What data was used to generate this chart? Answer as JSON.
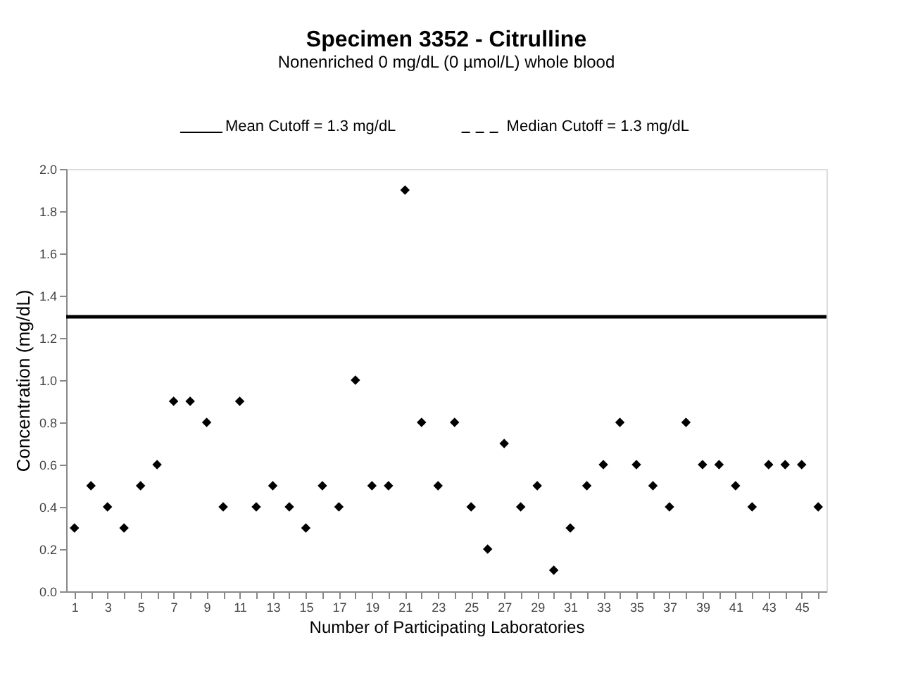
{
  "chart_data": {
    "type": "scatter",
    "title": "Specimen 3352 - Citrulline",
    "subtitle": "Nonenriched 0 mg/dL (0 µmol/L) whole blood",
    "xlabel": "Number of Participating Laboratories",
    "ylabel": "Concentration (mg/dL)",
    "x": [
      1,
      2,
      3,
      4,
      5,
      6,
      7,
      8,
      9,
      10,
      11,
      12,
      13,
      14,
      15,
      16,
      17,
      18,
      19,
      20,
      21,
      22,
      23,
      24,
      25,
      26,
      27,
      28,
      29,
      30,
      31,
      32,
      33,
      34,
      35,
      36,
      37,
      38,
      39,
      40,
      41,
      42,
      43,
      44,
      45,
      46
    ],
    "series": [
      {
        "color": "#000000",
        "values": [
          0.3,
          0.5,
          0.4,
          0.3,
          0.5,
          0.6,
          0.9,
          0.9,
          0.8,
          0.4,
          0.9,
          0.4,
          0.5,
          0.4,
          0.3,
          0.5,
          0.4,
          1.0,
          0.5,
          0.5,
          1.9,
          0.8,
          0.5,
          0.8,
          0.4,
          0.2,
          0.7,
          0.4,
          0.5,
          0.1,
          0.3,
          0.5,
          0.6,
          0.8,
          0.6,
          0.5,
          0.4,
          0.8,
          0.6,
          0.6,
          0.5,
          0.4,
          0.6,
          0.6,
          0.6,
          0.4
        ]
      }
    ],
    "marker": "diamond",
    "xlim": [
      0.5,
      46.5
    ],
    "xticks": [
      1,
      {
        "value": 2,
        "label": null
      },
      3,
      {
        "value": 4,
        "label": null
      },
      5,
      {
        "value": 6,
        "label": null
      },
      7,
      {
        "value": 8,
        "label": null
      },
      9,
      {
        "value": 10,
        "label": null
      },
      11,
      {
        "value": 12,
        "label": null
      },
      13,
      {
        "value": 14,
        "label": null
      },
      15,
      {
        "value": 16,
        "label": null
      },
      17,
      {
        "value": 18,
        "label": null
      },
      19,
      {
        "value": 20,
        "label": null
      },
      21,
      {
        "value": 22,
        "label": null
      },
      23,
      {
        "value": 24,
        "label": null
      },
      25,
      {
        "value": 26,
        "label": null
      },
      27,
      {
        "value": 28,
        "label": null
      },
      29,
      {
        "value": 30,
        "label": null
      },
      31,
      {
        "value": 32,
        "label": null
      },
      33,
      {
        "value": 34,
        "label": null
      },
      35,
      {
        "value": 36,
        "label": null
      },
      37,
      {
        "value": 38,
        "label": null
      },
      39,
      {
        "value": 40,
        "label": null
      },
      41,
      {
        "value": 42,
        "label": null
      },
      43,
      {
        "value": 44,
        "label": null
      },
      45,
      {
        "value": 46,
        "label": null
      }
    ],
    "ylim": [
      0,
      2.0
    ],
    "yticks": [
      {
        "value": 0,
        "label": "0.0"
      },
      0.2,
      0.4,
      0.6,
      0.8,
      {
        "value": 1,
        "label": "1.0"
      },
      1.2,
      1.4,
      1.6,
      1.8,
      {
        "value": 2,
        "label": "2.0"
      }
    ],
    "grid": false,
    "ref_lines": [
      {
        "axis": "y",
        "value": 1.3,
        "label": "Mean Cutoff = 1.3 mg/dL",
        "line_style": "solid",
        "color": "#000000"
      },
      {
        "value": null,
        "label": "Median Cutoff = 1.3 mg/dL",
        "line_style": "dashed",
        "color": "#000000"
      }
    ]
  }
}
